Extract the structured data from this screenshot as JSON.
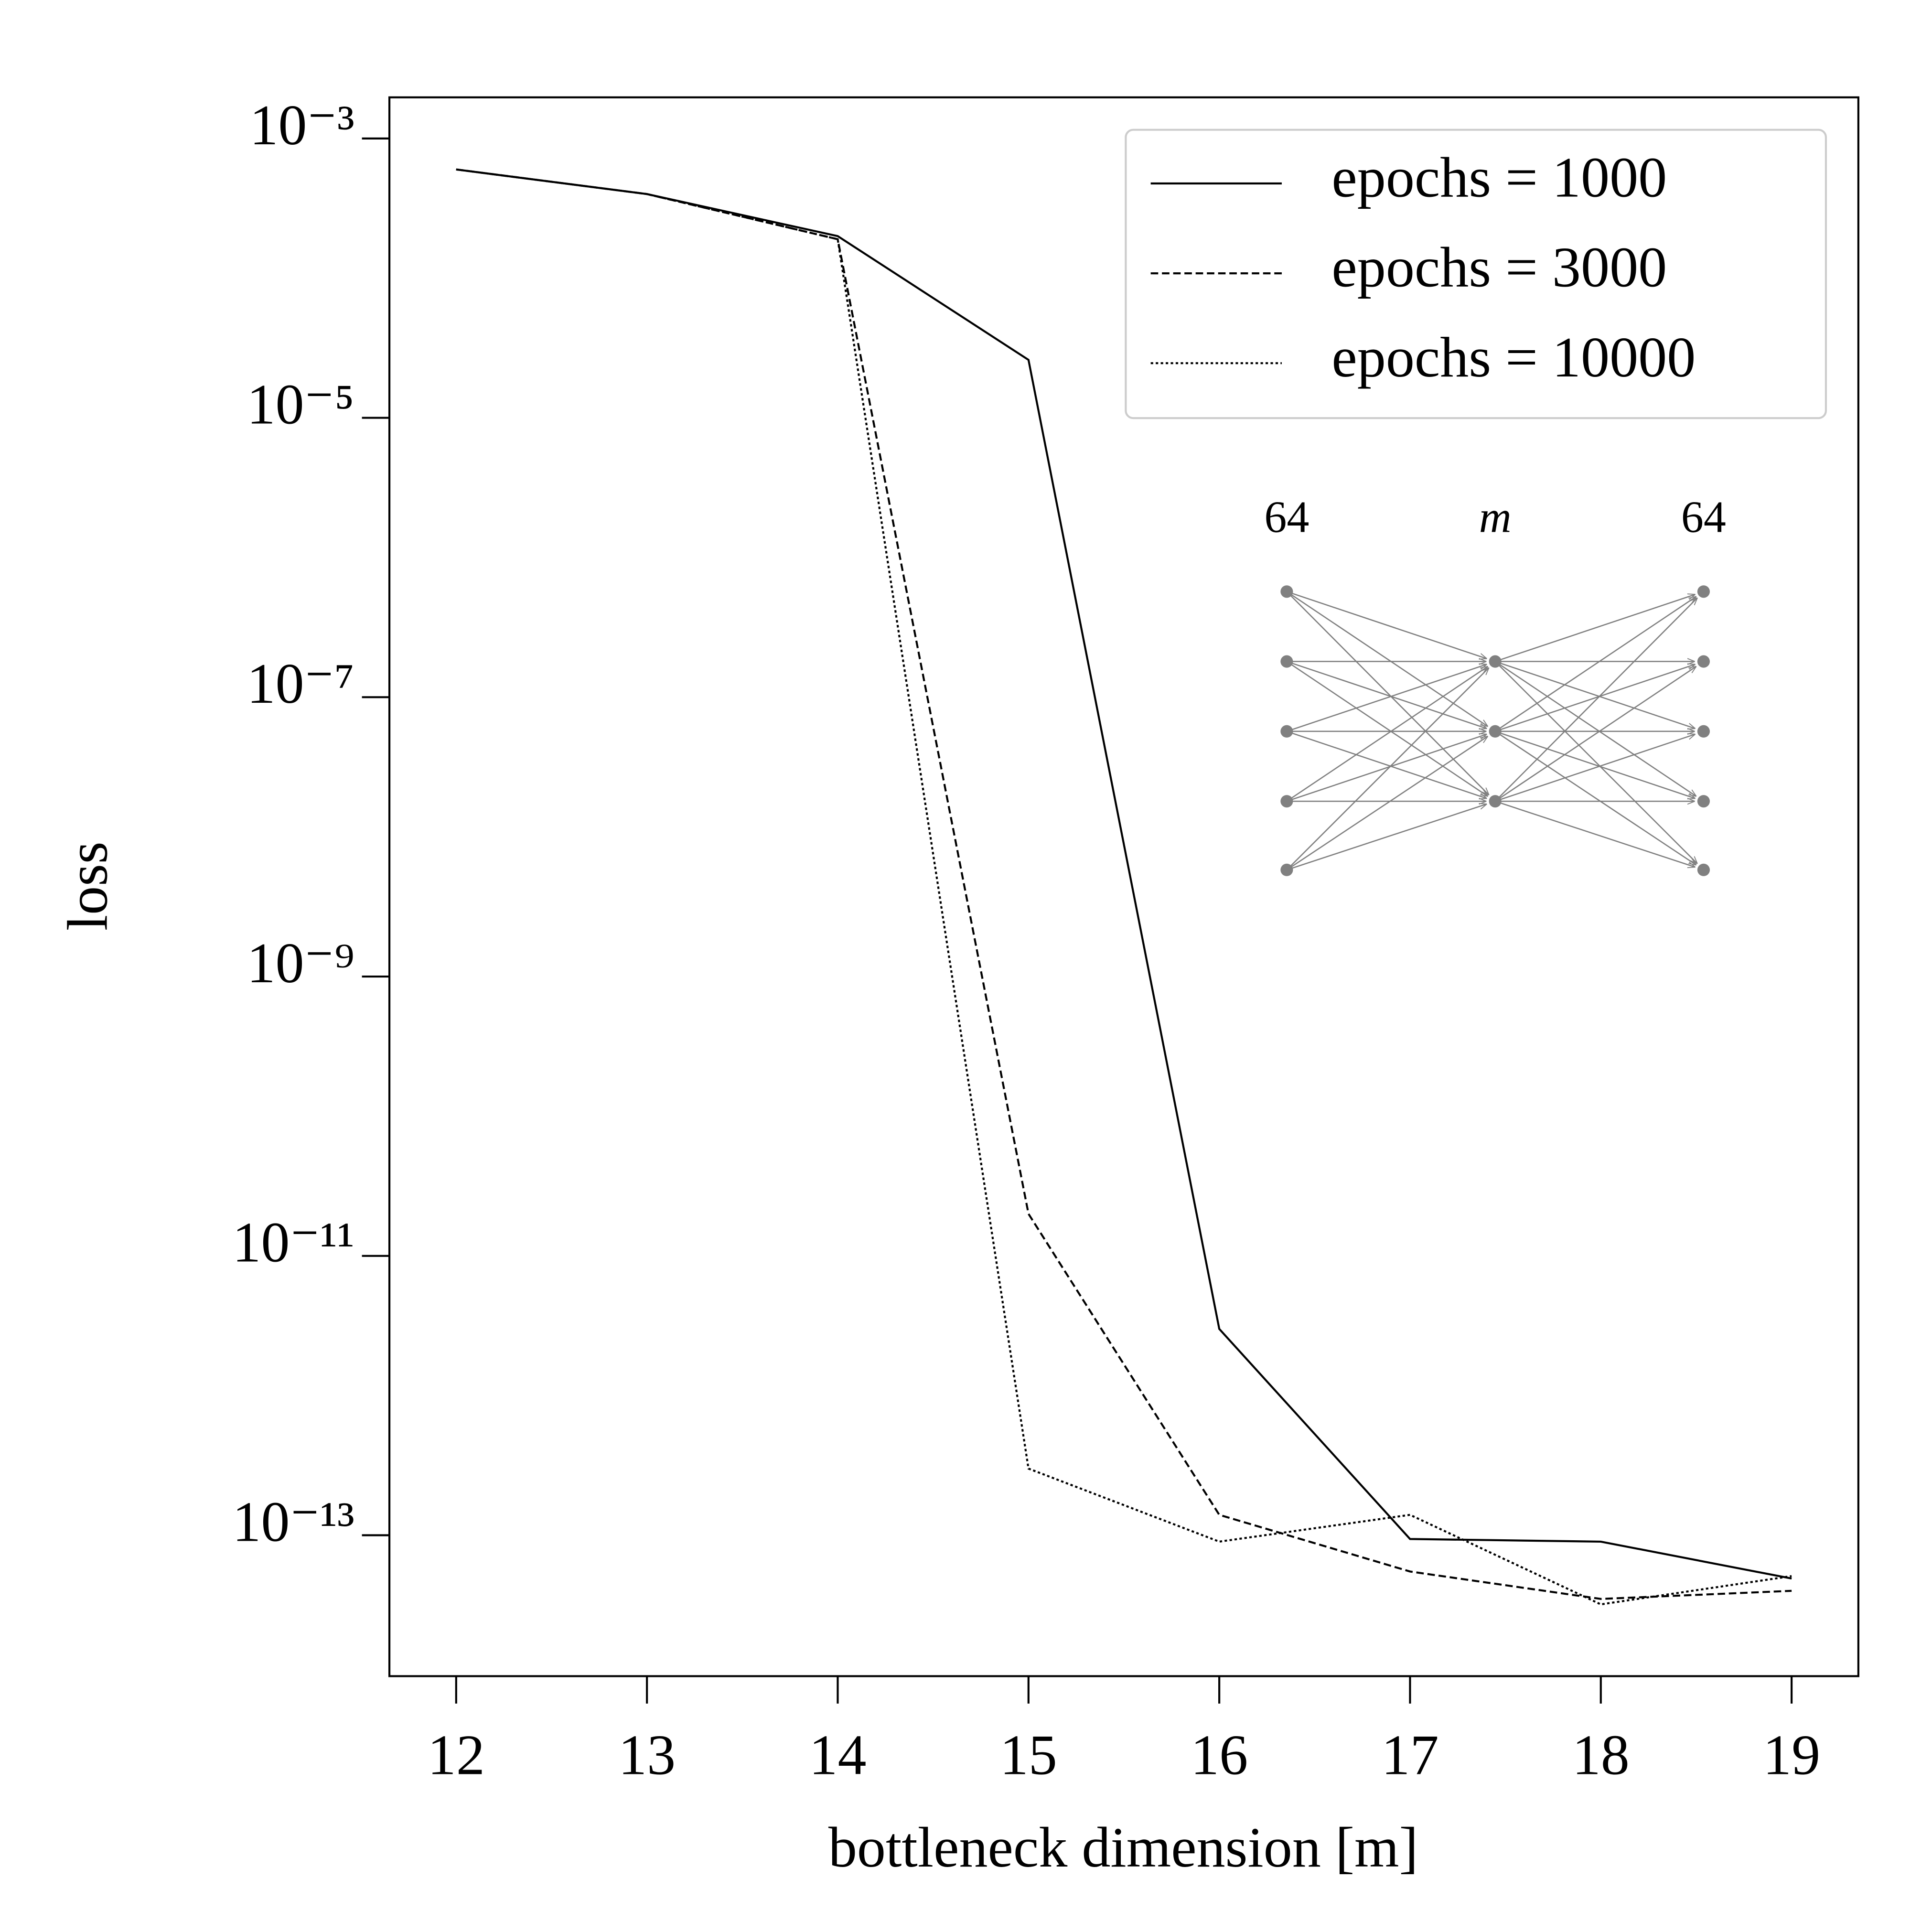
{
  "chart_data": {
    "type": "line",
    "x_label": "bottleneck dimension [m]",
    "y_label": "loss",
    "x": [
      12,
      13,
      14,
      15,
      16,
      17,
      18,
      19
    ],
    "series": [
      {
        "name": "epochs = 1000",
        "color": "#000000",
        "dash": "solid",
        "values": [
          0.0006,
          0.0004,
          0.0002,
          2.6e-05,
          3e-12,
          9.4e-14,
          9e-14,
          4.9e-14
        ]
      },
      {
        "name": "epochs = 3000",
        "color": "#000000",
        "dash": "dashed",
        "values": [
          0.0006,
          0.0004,
          0.00019,
          2e-11,
          1.4e-13,
          5.5e-14,
          3.5e-14,
          4e-14
        ]
      },
      {
        "name": "epochs = 10000",
        "color": "#000000",
        "dash": "dotted",
        "values": [
          0.0006,
          0.0004,
          0.00019,
          3e-13,
          9e-14,
          1.4e-13,
          3.2e-14,
          5.1e-14
        ]
      }
    ],
    "xlim": [
      11.65,
      19.35
    ],
    "xticks": [
      12,
      13,
      14,
      15,
      16,
      17,
      18,
      19
    ],
    "ylim": [
      9.8e-15,
      0.00197
    ],
    "y_scale": "log",
    "yticks": [
      {
        "value": 0.001,
        "label": "10⁻³"
      },
      {
        "value": 1e-05,
        "label": "10⁻⁵"
      },
      {
        "value": 1e-07,
        "label": "10⁻⁷"
      },
      {
        "value": 1e-09,
        "label": "10⁻⁹"
      },
      {
        "value": 1e-11,
        "label": "10⁻¹¹"
      },
      {
        "value": 1e-13,
        "label": "10⁻¹³"
      }
    ],
    "grid": false,
    "legend": "upper right",
    "inset": {
      "labels": [
        "64",
        "m",
        "64"
      ]
    }
  }
}
